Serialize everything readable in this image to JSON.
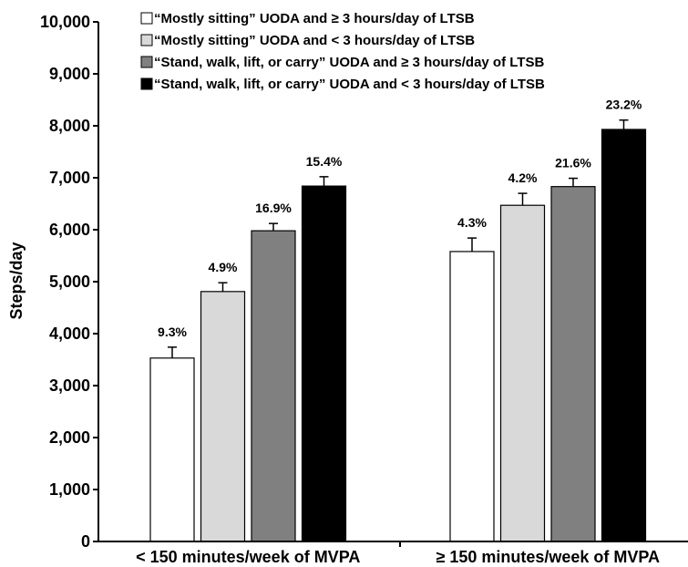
{
  "chart_data": {
    "type": "bar",
    "ylabel": "Steps/day",
    "xlabel": "",
    "ylim": [
      0,
      10000
    ],
    "yticks": [
      0,
      1000,
      2000,
      3000,
      4000,
      5000,
      6000,
      7000,
      8000,
      9000,
      10000
    ],
    "ytick_labels": [
      "0",
      "1,000",
      "2,000",
      "3,000",
      "4,000",
      "5,000",
      "6,000",
      "7,000",
      "8,000",
      "9,000",
      "10,000"
    ],
    "categories": [
      "< 150 minutes/week of MVPA",
      "≥ 150 minutes/week of MVPA"
    ],
    "grid": false,
    "legend_position": "top",
    "series": [
      {
        "name": "“Mostly sitting” UODA and ≥ 3 hours/day of LTSB",
        "color": "#ffffff",
        "values": [
          3530,
          5580
        ],
        "errors": [
          210,
          260
        ],
        "data_labels": [
          "9.3%",
          "4.3%"
        ]
      },
      {
        "name": "“Mostly sitting” UODA and < 3 hours/day of LTSB",
        "color": "#d9d9d9",
        "values": [
          4810,
          6470
        ],
        "errors": [
          170,
          230
        ],
        "data_labels": [
          "4.9%",
          "4.2%"
        ]
      },
      {
        "name": "“Stand, walk, lift, or carry” UODA and ≥ 3 hours/day of LTSB",
        "color": "#808080",
        "values": [
          5980,
          6830
        ],
        "errors": [
          140,
          160
        ],
        "data_labels": [
          "16.9%",
          "21.6%"
        ]
      },
      {
        "name": "“Stand, walk, lift, or carry” UODA and < 3 hours/day of LTSB",
        "color": "#000000",
        "values": [
          6840,
          7930
        ],
        "errors": [
          180,
          180
        ],
        "data_labels": [
          "15.4%",
          "23.2%"
        ]
      }
    ]
  }
}
